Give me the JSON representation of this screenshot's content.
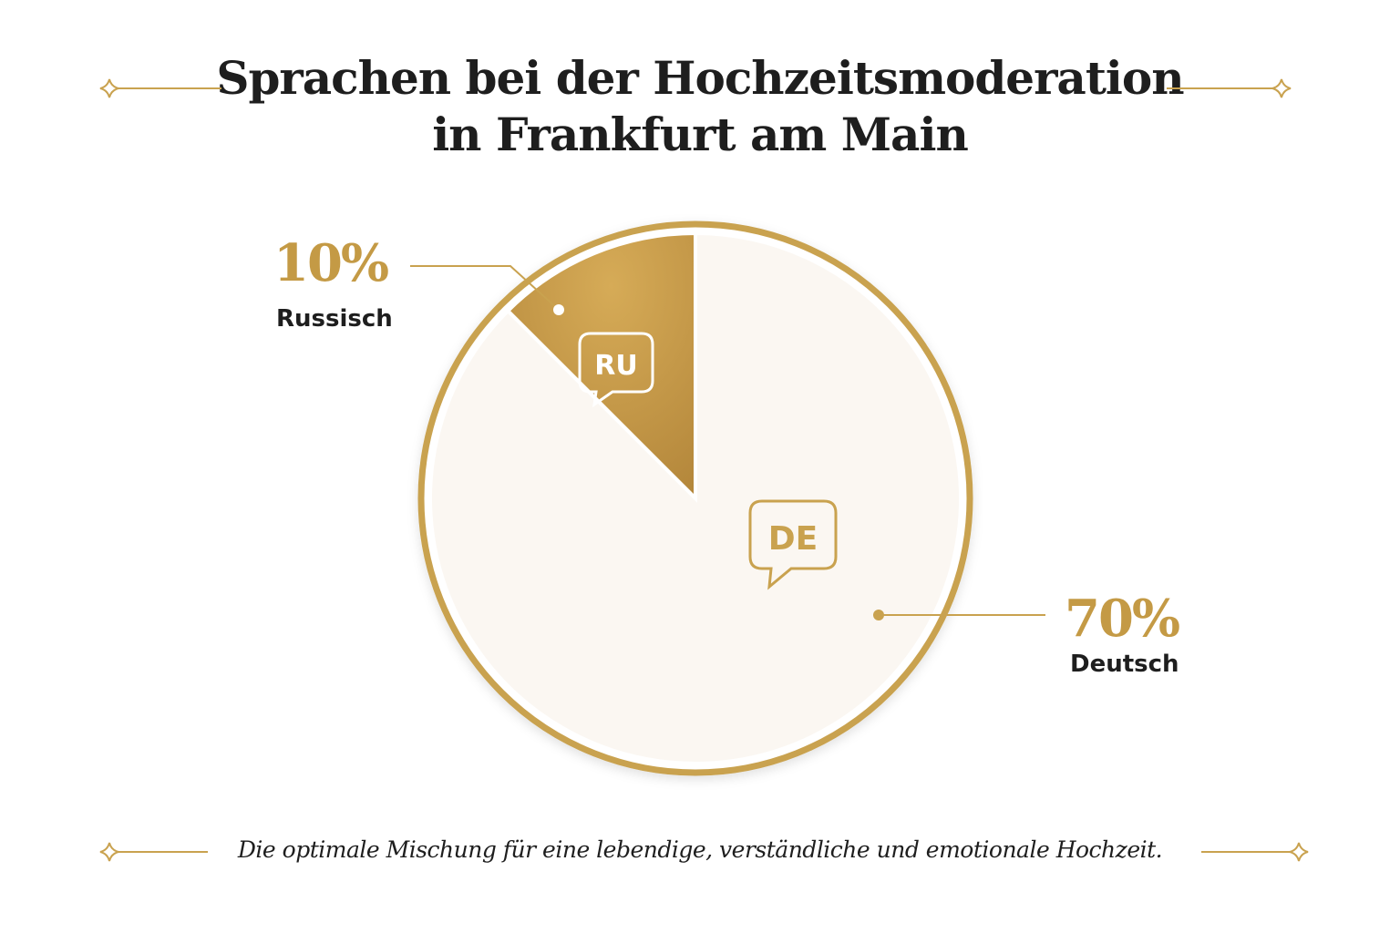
{
  "chart_data": {
    "type": "pie",
    "title": "Sprachen bei der Hochzeitsmoderation in Frankfurt am Main",
    "title_lines": [
      "Sprachen bei der Hochzeitsmoderation",
      "in Frankfurt am Main"
    ],
    "subtitle": "Die optimale Mischung für eine lebendige, verständliche und emotionale Hochzeit.",
    "slices": [
      {
        "label": "Russisch",
        "code": "RU",
        "value": 10,
        "value_label": "10%",
        "color": "#c0913f"
      },
      {
        "label": "Deutsch",
        "code": "DE",
        "value": 70,
        "value_label": "70%",
        "color": "#fbf7f2"
      }
    ],
    "accent_color": "#c9a24f",
    "legend": "none"
  }
}
